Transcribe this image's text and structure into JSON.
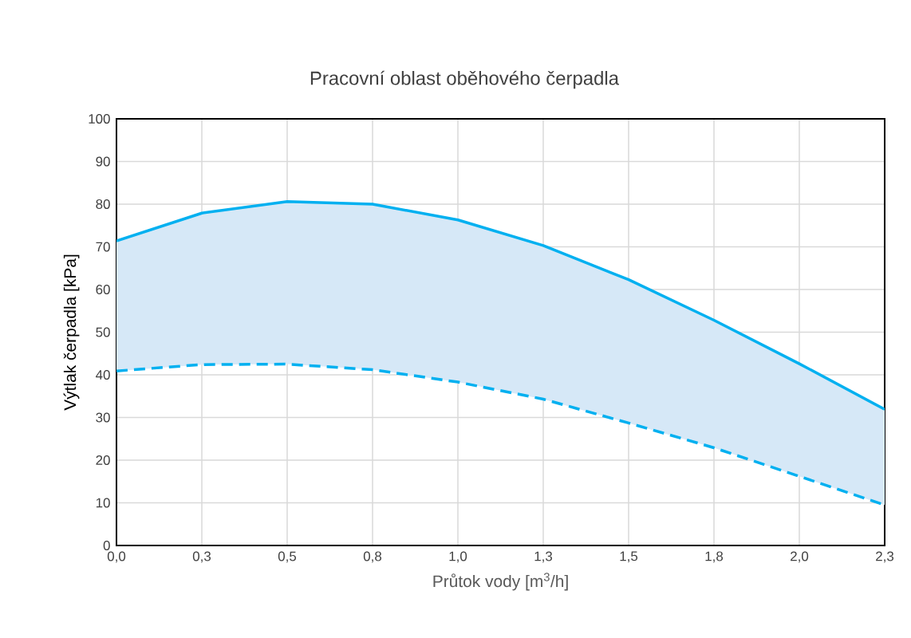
{
  "chart_data": {
    "type": "line",
    "title": "Pracovní oblast oběhového čerpadla",
    "xlabel": "Průtok vody [m$^{3}$/h]",
    "ylabel": "Výtlak čerpadla [kPa]",
    "x": [
      0,
      0.25,
      0.5,
      0.75,
      1.0,
      1.25,
      1.5,
      1.75,
      2.0,
      2.25
    ],
    "series": [
      {
        "color": "#00b0f0",
        "line_style": "solid",
        "values": [
          71.4,
          77.9,
          80.6,
          80.0,
          76.3,
          70.3,
          62.3,
          52.8,
          42.6,
          31.9
        ],
        "lower": [
          40.9,
          42.4,
          42.5,
          41.2,
          38.3,
          34.3,
          28.7,
          22.9,
          16.2,
          9.5
        ],
        "upper": [
          71.4,
          77.9,
          80.6,
          80.0,
          76.3,
          70.3,
          62.3,
          52.8,
          42.6,
          31.9
        ]
      },
      {
        "color": "#00b0f0",
        "line_style": "dashed",
        "values": [
          40.9,
          42.4,
          42.5,
          41.2,
          38.3,
          34.3,
          28.7,
          22.9,
          16.2,
          9.5
        ]
      }
    ],
    "xlim": [
      0,
      2.25
    ],
    "xticks": [
      {
        "value": 0,
        "label": "0,0"
      },
      {
        "value": 0.25,
        "label": "0,3"
      },
      {
        "value": 0.5,
        "label": "0,5"
      },
      {
        "value": 0.75,
        "label": "0,8"
      },
      {
        "value": 1.0,
        "label": "1,0"
      },
      {
        "value": 1.25,
        "label": "1,3"
      },
      {
        "value": 1.5,
        "label": "1,5"
      },
      {
        "value": 1.75,
        "label": "1,8"
      },
      {
        "value": 2.0,
        "label": "2,0"
      },
      {
        "value": 2.25,
        "label": "2,3"
      }
    ],
    "ylim": [
      0,
      100
    ],
    "yticks": [
      0,
      10,
      20,
      30,
      40,
      50,
      60,
      70,
      80,
      90,
      100
    ],
    "grid": true,
    "legend": false,
    "marker": "none"
  }
}
